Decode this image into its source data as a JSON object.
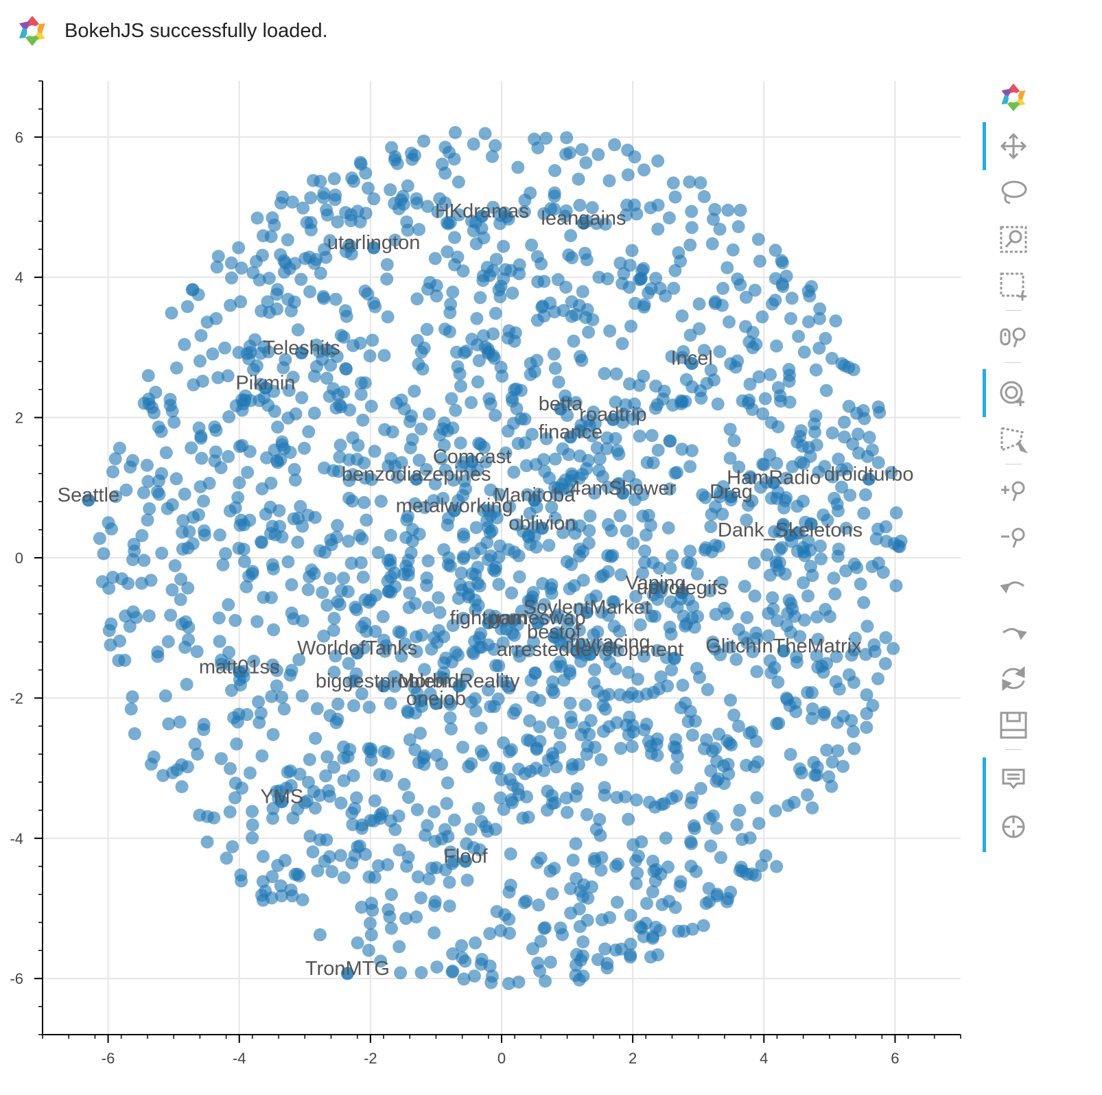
{
  "banner": {
    "message": "BokehJS successfully loaded.",
    "icon": "bokeh-logo-icon"
  },
  "toolbar": {
    "tools": [
      {
        "name": "pan-tool",
        "icon": "pan-icon",
        "active": true
      },
      {
        "name": "lasso-select-tool",
        "icon": "lasso-icon",
        "active": false
      },
      {
        "name": "box-zoom-tool",
        "icon": "box-zoom-icon",
        "active": false
      },
      {
        "name": "box-select-tool",
        "icon": "box-select-icon",
        "active": false
      },
      {
        "name": "zoom-in-out-tool",
        "icon": "zoom-icon",
        "active": false
      },
      {
        "name": "wheel-zoom-tool",
        "icon": "wheel-zoom-icon",
        "active": true
      },
      {
        "name": "poly-select-tool",
        "icon": "poly-select-icon",
        "active": false
      },
      {
        "name": "zoom-in-tool",
        "icon": "zoom-in-icon",
        "active": false
      },
      {
        "name": "zoom-out-tool",
        "icon": "zoom-out-icon",
        "active": false
      },
      {
        "name": "undo-tool",
        "icon": "undo-icon",
        "active": false
      },
      {
        "name": "redo-tool",
        "icon": "redo-icon",
        "active": false
      },
      {
        "name": "reset-tool",
        "icon": "reset-icon",
        "active": false
      },
      {
        "name": "save-tool",
        "icon": "save-icon",
        "active": false
      },
      {
        "name": "hover-tool",
        "icon": "hover-icon",
        "active": true
      },
      {
        "name": "crosshair-tool",
        "icon": "crosshair-icon",
        "active": true
      }
    ]
  },
  "chart_data": {
    "type": "scatter",
    "title": "",
    "xlabel": "",
    "ylabel": "",
    "xlim": [
      -7,
      7
    ],
    "ylim": [
      -6.8,
      6.8
    ],
    "xticks": [
      -6,
      -4,
      -2,
      0,
      2,
      4,
      6
    ],
    "yticks": [
      -6,
      -4,
      -2,
      0,
      2,
      4,
      6
    ],
    "grid": true,
    "point_color": "#1f77b4",
    "point_alpha": 0.6,
    "point_count_approx": 2000,
    "labels": [
      {
        "text": "HKdramas",
        "x": -0.3,
        "y": 4.95
      },
      {
        "text": "leangains",
        "x": 1.25,
        "y": 4.85
      },
      {
        "text": "utarlington",
        "x": -1.95,
        "y": 4.5
      },
      {
        "text": "Teleshits",
        "x": -3.05,
        "y": 3.0
      },
      {
        "text": "Incel",
        "x": 2.9,
        "y": 2.85
      },
      {
        "text": "Pikmin",
        "x": -3.6,
        "y": 2.5
      },
      {
        "text": "betta",
        "x": 0.9,
        "y": 2.2
      },
      {
        "text": "roadtrip",
        "x": 1.7,
        "y": 2.05
      },
      {
        "text": "finance",
        "x": 1.05,
        "y": 1.8
      },
      {
        "text": "Comcast",
        "x": -0.45,
        "y": 1.45
      },
      {
        "text": "benzodiazepines",
        "x": -1.3,
        "y": 1.2
      },
      {
        "text": "HamRadio",
        "x": 4.15,
        "y": 1.15
      },
      {
        "text": "droidturbo",
        "x": 5.6,
        "y": 1.2
      },
      {
        "text": "4amShower",
        "x": 1.85,
        "y": 1.0
      },
      {
        "text": "Manitoba",
        "x": 0.5,
        "y": 0.9
      },
      {
        "text": "Drag",
        "x": 3.5,
        "y": 0.95
      },
      {
        "text": "Seattle",
        "x": -6.3,
        "y": 0.9
      },
      {
        "text": "metalworking",
        "x": -0.72,
        "y": 0.75
      },
      {
        "text": "oblivion",
        "x": 0.62,
        "y": 0.5
      },
      {
        "text": "Dank_Skeletons",
        "x": 4.4,
        "y": 0.4
      },
      {
        "text": "Vaping",
        "x": 2.35,
        "y": -0.35
      },
      {
        "text": "upvotegifs",
        "x": 2.75,
        "y": -0.42
      },
      {
        "text": "SoylentMarket",
        "x": 1.3,
        "y": -0.7
      },
      {
        "text": "fightporn",
        "x": -0.2,
        "y": -0.85
      },
      {
        "text": "gameswap",
        "x": 0.55,
        "y": -0.85
      },
      {
        "text": "bestof",
        "x": 0.8,
        "y": -1.05
      },
      {
        "text": "fpvracing",
        "x": 1.65,
        "y": -1.2
      },
      {
        "text": "WorldofTanks",
        "x": -2.2,
        "y": -1.28
      },
      {
        "text": "arresteddevelopment",
        "x": 1.35,
        "y": -1.3
      },
      {
        "text": "GlitchInTheMatrix",
        "x": 4.3,
        "y": -1.25
      },
      {
        "text": "matt01ss",
        "x": -4.0,
        "y": -1.55
      },
      {
        "text": "biggestproblem",
        "x": -1.8,
        "y": -1.75
      },
      {
        "text": "MorbidReality",
        "x": -0.65,
        "y": -1.75
      },
      {
        "text": "onejob",
        "x": -1.0,
        "y": -2.0
      },
      {
        "text": "YMS",
        "x": -3.35,
        "y": -3.4
      },
      {
        "text": "Floof",
        "x": -0.55,
        "y": -4.25
      },
      {
        "text": "TronMTG",
        "x": -2.35,
        "y": -5.85
      }
    ]
  }
}
